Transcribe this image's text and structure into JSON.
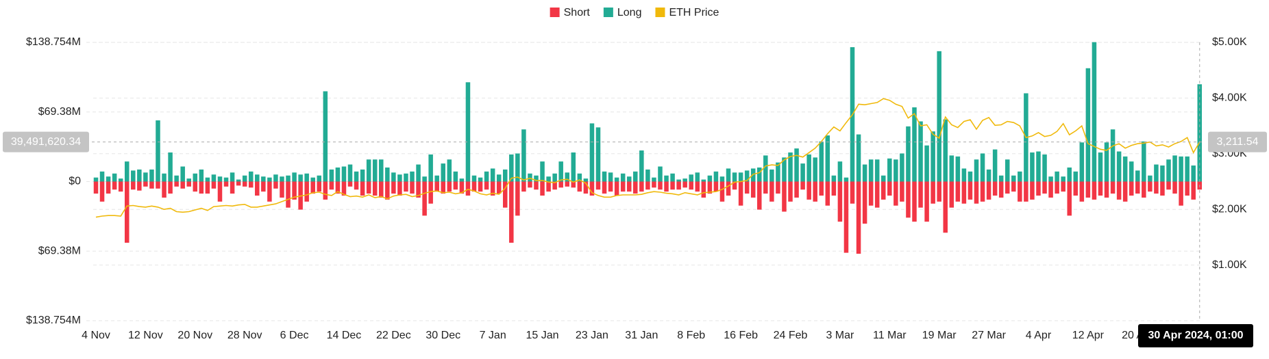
{
  "chart_data": {
    "type": "bar",
    "categories": [
      "4 Nov",
      null,
      null,
      null,
      null,
      null,
      null,
      null,
      "12 Nov",
      null,
      null,
      null,
      null,
      null,
      null,
      null,
      "20 Nov",
      null,
      null,
      null,
      null,
      null,
      null,
      null,
      "28 Nov",
      null,
      null,
      null,
      null,
      null,
      null,
      null,
      "6 Dec",
      null,
      null,
      null,
      null,
      null,
      null,
      null,
      "14 Dec",
      null,
      null,
      null,
      null,
      null,
      null,
      null,
      "22 Dec",
      null,
      null,
      null,
      null,
      null,
      null,
      null,
      "30 Dec",
      null,
      null,
      null,
      null,
      null,
      null,
      null,
      "7 Jan",
      null,
      null,
      null,
      null,
      null,
      null,
      null,
      "15 Jan",
      null,
      null,
      null,
      null,
      null,
      null,
      null,
      "23 Jan",
      null,
      null,
      null,
      null,
      null,
      null,
      null,
      "31 Jan",
      null,
      null,
      null,
      null,
      null,
      null,
      null,
      "8 Feb",
      null,
      null,
      null,
      null,
      null,
      null,
      null,
      "16 Feb",
      null,
      null,
      null,
      null,
      null,
      null,
      null,
      "24 Feb",
      null,
      null,
      null,
      null,
      null,
      null,
      null,
      "3 Mar",
      null,
      null,
      null,
      null,
      null,
      null,
      null,
      "11 Mar",
      null,
      null,
      null,
      null,
      null,
      null,
      null,
      "19 Mar",
      null,
      null,
      null,
      null,
      null,
      null,
      null,
      "27 Mar",
      null,
      null,
      null,
      null,
      null,
      null,
      null,
      "4 Apr",
      null,
      null,
      null,
      null,
      null,
      null,
      null,
      "12 Apr",
      null,
      null,
      null,
      null,
      null,
      null,
      null,
      "20 Apr",
      null,
      null,
      null,
      null,
      null,
      null,
      null,
      null,
      null,
      null
    ],
    "series": [
      {
        "name": "Short",
        "color": "#f23645",
        "axis": "y",
        "values": [
          -12,
          -20,
          -12,
          -8,
          -10,
          -61,
          -8,
          -9,
          -5,
          -7,
          -7,
          -16,
          -12,
          -5,
          -7,
          -5,
          -10,
          -12,
          -12,
          -7,
          -20,
          -5,
          -12,
          -4,
          -5,
          -6,
          -14,
          -10,
          -20,
          -7,
          -16,
          -26,
          -18,
          -28,
          -20,
          -12,
          -10,
          -18,
          -8,
          -12,
          -14,
          -5,
          -8,
          -14,
          -12,
          -14,
          -16,
          -18,
          -12,
          -14,
          -10,
          -12,
          -16,
          -34,
          -22,
          -10,
          -12,
          -10,
          -8,
          -12,
          -14,
          -10,
          -10,
          -8,
          -14,
          -12,
          -26,
          -61,
          -34,
          -10,
          -6,
          -8,
          -14,
          -10,
          -8,
          -6,
          -5,
          -6,
          -10,
          -12,
          -14,
          -8,
          -12,
          -10,
          -14,
          -10,
          -10,
          -12,
          -10,
          -8,
          -6,
          -8,
          -10,
          -8,
          -8,
          -6,
          -8,
          -10,
          -16,
          -12,
          -10,
          -20,
          -14,
          -8,
          -24,
          -12,
          -16,
          -28,
          -12,
          -20,
          -12,
          -30,
          -20,
          -16,
          -8,
          -18,
          -20,
          -14,
          -24,
          -14,
          -40,
          -71,
          -22,
          -72,
          -42,
          -24,
          -26,
          -18,
          -14,
          -24,
          -20,
          -36,
          -40,
          -26,
          -40,
          -22,
          -20,
          -51,
          -26,
          -20,
          -22,
          -18,
          -22,
          -20,
          -18,
          -14,
          -16,
          -12,
          -10,
          -20,
          -20,
          -18,
          -14,
          -12,
          -16,
          -12,
          -10,
          -34,
          -14,
          -20,
          -16,
          -18,
          -14,
          -16,
          -12,
          -18,
          -20,
          -14,
          -12,
          -16,
          -10,
          -12,
          -14,
          -8,
          -12,
          -24,
          -14,
          -18,
          -8
        ]
      },
      {
        "name": "Long",
        "color": "#22ab94",
        "axis": "y",
        "values": [
          4,
          10,
          5,
          8,
          3,
          20,
          11,
          12,
          9,
          12,
          61,
          8,
          29,
          6,
          15,
          3,
          8,
          12,
          4,
          7,
          5,
          4,
          9,
          2,
          6,
          10,
          7,
          5,
          4,
          7,
          5,
          6,
          9,
          7,
          8,
          4,
          6,
          90,
          12,
          14,
          15,
          17,
          10,
          12,
          22,
          22,
          22,
          14,
          9,
          7,
          8,
          10,
          17,
          5,
          27,
          6,
          18,
          22,
          10,
          3,
          99,
          6,
          4,
          10,
          13,
          7,
          12,
          27,
          28,
          52,
          8,
          6,
          20,
          5,
          8,
          20,
          9,
          29,
          8,
          3,
          58,
          54,
          10,
          9,
          4,
          8,
          5,
          10,
          31,
          12,
          4,
          15,
          6,
          8,
          2,
          3,
          7,
          9,
          2,
          6,
          10,
          5,
          13,
          9,
          9,
          11,
          13,
          14,
          26,
          12,
          19,
          24,
          29,
          33,
          18,
          27,
          24,
          40,
          46,
          6,
          20,
          4,
          134,
          47,
          17,
          22,
          22,
          6,
          23,
          22,
          28,
          55,
          74,
          60,
          36,
          50,
          130,
          62,
          26,
          25,
          13,
          10,
          22,
          28,
          12,
          32,
          6,
          22,
          6,
          10,
          88,
          29,
          30,
          27,
          5,
          10,
          5,
          14,
          10,
          39,
          113,
          139,
          29,
          39,
          52,
          30,
          25,
          20,
          11,
          40,
          6,
          17,
          16,
          22,
          26,
          25,
          25,
          16,
          97
        ]
      },
      {
        "name": "ETH Price",
        "color": "#f0b90b",
        "axis": "y2",
        "values": [
          1860,
          1880,
          1890,
          1890,
          1880,
          2060,
          2070,
          2050,
          2040,
          2060,
          2040,
          2000,
          2020,
          1960,
          1950,
          1960,
          1990,
          2020,
          1980,
          2050,
          2060,
          2070,
          2060,
          2080,
          2090,
          2040,
          2040,
          2060,
          2080,
          2100,
          2140,
          2180,
          2220,
          2240,
          2260,
          2300,
          2310,
          2270,
          2250,
          2320,
          2270,
          2230,
          2240,
          2220,
          2260,
          2210,
          2230,
          2190,
          2240,
          2260,
          2270,
          2230,
          2250,
          2290,
          2320,
          2330,
          2300,
          2310,
          2280,
          2300,
          2360,
          2330,
          2280,
          2260,
          2290,
          2270,
          2380,
          2560,
          2580,
          2530,
          2560,
          2520,
          2520,
          2490,
          2480,
          2530,
          2540,
          2490,
          2530,
          2470,
          2300,
          2250,
          2220,
          2220,
          2250,
          2260,
          2260,
          2260,
          2270,
          2300,
          2320,
          2310,
          2290,
          2280,
          2260,
          2300,
          2280,
          2260,
          2300,
          2310,
          2320,
          2360,
          2420,
          2490,
          2500,
          2520,
          2630,
          2660,
          2780,
          2800,
          2790,
          2890,
          2950,
          2970,
          2940,
          3020,
          3100,
          3220,
          3360,
          3480,
          3410,
          3560,
          3700,
          3890,
          3880,
          3900,
          3920,
          3990,
          3960,
          3890,
          3850,
          3640,
          3720,
          3500,
          3520,
          3350,
          3280,
          3660,
          3520,
          3470,
          3580,
          3610,
          3440,
          3600,
          3650,
          3510,
          3520,
          3580,
          3560,
          3500,
          3290,
          3320,
          3380,
          3310,
          3330,
          3400,
          3540,
          3340,
          3410,
          3500,
          3180,
          3130,
          3080,
          3060,
          3140,
          3180,
          3100,
          3150,
          3180,
          3190,
          3210,
          3140,
          3160,
          3120,
          3180,
          3220,
          3290,
          3020,
          3211.54
        ]
      }
    ],
    "ylim": [
      -138.754,
      138.754
    ],
    "yticks": [
      {
        "value": 138.754,
        "label": "$138.754M"
      },
      {
        "value": 69.38,
        "label": "$69.38M"
      },
      {
        "value": 0,
        "label": "$0"
      },
      {
        "value": -69.38,
        "label": "$69.38M"
      },
      {
        "value": -138.754,
        "label": "$138.754M"
      }
    ],
    "y2lim": [
      0,
      5000
    ],
    "y2ticks": [
      {
        "value": 5000,
        "label": "$5.00K"
      },
      {
        "value": 4000,
        "label": "$4.00K"
      },
      {
        "value": 3000,
        "label": "$3.00K"
      },
      {
        "value": 2000,
        "label": "$2.00K"
      },
      {
        "value": 1000,
        "label": "$1.00K"
      }
    ],
    "grid": true,
    "legend": "top",
    "crosshair": {
      "y": {
        "value": 39.49162034,
        "label": "39,491,620.34"
      },
      "y2": {
        "value": 3211.54,
        "label": "3,211.54"
      },
      "x_label": "30 Apr 2024, 01:00"
    }
  }
}
